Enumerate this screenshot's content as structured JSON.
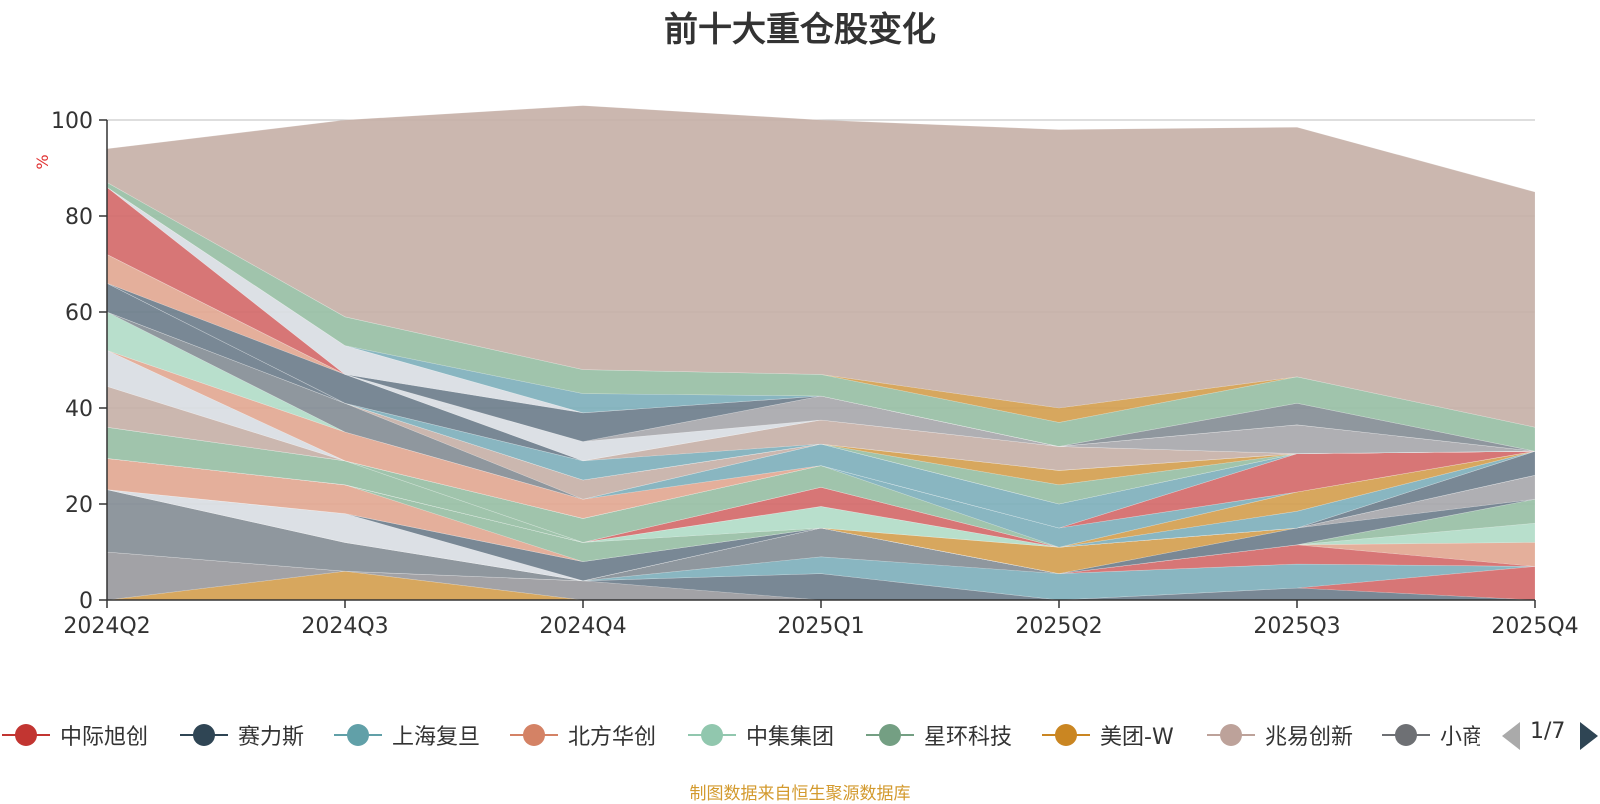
{
  "chart_data": {
    "type": "area",
    "title": "前十大重仓股变化",
    "ylabel": "%",
    "ylim": [
      0,
      100
    ],
    "yticks": [
      0,
      20,
      40,
      60,
      80,
      100
    ],
    "grid": true,
    "legend_placement": "bottom",
    "categories": [
      "2024Q2",
      "2024Q3",
      "2024Q4",
      "2025Q1",
      "2025Q2",
      "2025Q3",
      "2025Q4"
    ],
    "series": [
      {
        "color": "#d4a050",
        "values": [
          0,
          6,
          0,
          0,
          0,
          0,
          0
        ]
      },
      {
        "color": "#9a9a9e",
        "values": [
          10,
          0,
          4,
          0,
          0,
          0,
          0
        ]
      },
      {
        "color": "#6e7e8c",
        "values": [
          0,
          0,
          0,
          5.5,
          0,
          2.5,
          0
        ]
      },
      {
        "color": "#d46a6a",
        "values": [
          0,
          0,
          0,
          0,
          0,
          0,
          7
        ]
      },
      {
        "color": "#7fb0bc",
        "values": [
          0,
          0,
          0,
          3.5,
          5.5,
          5,
          0
        ]
      },
      {
        "color": "#868e96",
        "values": [
          13,
          6,
          0,
          6,
          0,
          0,
          0
        ]
      },
      {
        "color": "#d46a6a",
        "values": [
          0,
          0,
          0,
          0,
          0,
          4,
          0
        ]
      },
      {
        "color": "#e2a892",
        "values": [
          0,
          0,
          0,
          0,
          0,
          0,
          5
        ]
      },
      {
        "color": "#b2dcc8",
        "values": [
          0,
          0,
          0,
          0,
          0,
          0,
          4
        ]
      },
      {
        "color": "#98bfa5",
        "values": [
          0,
          0,
          0,
          0,
          0,
          0,
          5
        ]
      },
      {
        "color": "#d9dde3",
        "values": [
          0,
          6,
          0,
          0,
          0,
          0,
          0
        ]
      },
      {
        "color": "#6e7e8c",
        "values": [
          0,
          0,
          4,
          0,
          0,
          3.5,
          0
        ]
      },
      {
        "color": "#a8a8ad",
        "values": [
          0,
          0,
          0,
          0,
          0,
          0,
          5
        ]
      },
      {
        "color": "#d4a050",
        "values": [
          0,
          0,
          0,
          0,
          5.5,
          0,
          0
        ]
      },
      {
        "color": "#e2a892",
        "values": [
          6.5,
          6,
          0,
          0,
          0,
          0,
          0
        ]
      },
      {
        "color": "#98bfa5",
        "values": [
          0,
          0,
          4,
          0,
          0,
          0,
          0
        ]
      },
      {
        "color": "#b2dcc8",
        "values": [
          0,
          0,
          0,
          4.5,
          0,
          0,
          0
        ]
      },
      {
        "color": "#6e7e8c",
        "values": [
          0,
          0,
          0,
          0,
          0,
          0,
          5
        ]
      },
      {
        "color": "#d9dde3",
        "values": [
          0,
          0,
          0,
          0,
          0,
          0,
          0
        ]
      },
      {
        "color": "#d46a6a",
        "values": [
          0,
          0,
          0,
          4,
          0,
          0,
          0
        ]
      },
      {
        "color": "#7fb0bc",
        "values": [
          0,
          0,
          0,
          0,
          0,
          3.5,
          0
        ]
      },
      {
        "color": "#98bfa5",
        "values": [
          6.5,
          5,
          0,
          0,
          0,
          0,
          0
        ]
      },
      {
        "color": "#d4a050",
        "values": [
          0,
          0,
          0,
          0,
          0,
          4,
          0
        ]
      },
      {
        "color": "#98bfa5",
        "values": [
          0,
          0,
          5,
          4.5,
          0,
          0,
          0
        ]
      },
      {
        "color": "#7fb0bc",
        "values": [
          0,
          0,
          0,
          0,
          4,
          0,
          0
        ]
      },
      {
        "color": "#c7b1a8",
        "values": [
          8.5,
          0,
          0,
          0,
          0,
          0,
          0
        ]
      },
      {
        "color": "#d46a6a",
        "values": [
          0,
          0,
          0,
          0,
          0,
          8,
          0
        ]
      },
      {
        "color": "#d9dde3",
        "values": [
          7.5,
          0,
          0,
          0,
          0,
          0,
          0
        ]
      },
      {
        "color": "#e2a892",
        "values": [
          0,
          6,
          4,
          0,
          0,
          0,
          0
        ]
      },
      {
        "color": "#7fb0bc",
        "values": [
          0,
          0,
          0,
          4.5,
          5,
          0,
          0
        ]
      },
      {
        "color": "#b2dcc8",
        "values": [
          8,
          0,
          0,
          0,
          0,
          0,
          0
        ]
      },
      {
        "color": "#868e96",
        "values": [
          0,
          6,
          0,
          0,
          0,
          0,
          0
        ]
      },
      {
        "color": "#c7b1a8",
        "values": [
          0,
          0,
          4,
          0,
          0,
          0,
          0
        ]
      },
      {
        "color": "#98bfa5",
        "values": [
          0,
          0,
          0,
          0,
          4,
          0,
          0
        ]
      },
      {
        "color": "#d4a050",
        "values": [
          0,
          0,
          0,
          0,
          3,
          0,
          0
        ]
      },
      {
        "color": "#6e7e8c",
        "values": [
          6,
          0,
          0,
          0,
          0,
          0,
          0
        ]
      },
      {
        "color": "#e2a892",
        "values": [
          0,
          0,
          0,
          0,
          0,
          0,
          0
        ]
      },
      {
        "color": "#7fb0bc",
        "values": [
          0,
          0,
          4,
          0,
          0,
          0,
          0
        ]
      },
      {
        "color": "#c7b1a8",
        "values": [
          0,
          0,
          0,
          5,
          5,
          0,
          0
        ]
      },
      {
        "color": "#6e7e8c",
        "values": [
          0,
          6,
          0,
          0,
          0,
          0,
          0
        ]
      },
      {
        "color": "#e2a892",
        "values": [
          6,
          0,
          0,
          0,
          0,
          0,
          0
        ]
      },
      {
        "color": "#d9dde3",
        "values": [
          0,
          0,
          4,
          0,
          0,
          0,
          0
        ]
      },
      {
        "color": "#a8a8ad",
        "values": [
          0,
          0,
          0,
          5,
          0,
          6,
          0
        ]
      },
      {
        "color": "#d46a6a",
        "values": [
          14,
          0,
          0,
          0,
          0,
          0,
          0
        ]
      },
      {
        "color": "#6e7e8c",
        "values": [
          0,
          0,
          6,
          0,
          0,
          0,
          0
        ]
      },
      {
        "color": "#d9dde3",
        "values": [
          0,
          6,
          0,
          0,
          0,
          0,
          0
        ]
      },
      {
        "color": "#868e96",
        "values": [
          0,
          0,
          0,
          0,
          0,
          4.5,
          0
        ]
      },
      {
        "color": "#7fb0bc",
        "values": [
          0,
          0,
          4,
          0,
          0,
          0,
          0
        ]
      },
      {
        "color": "#98bfa5",
        "values": [
          1,
          6,
          5,
          4.5,
          5,
          5.5,
          5
        ]
      },
      {
        "color": "#d4a050",
        "values": [
          0,
          0,
          0,
          0,
          3,
          0,
          0
        ]
      },
      {
        "color": "#c7b1a8",
        "values": [
          7,
          41,
          55,
          53,
          58,
          52,
          49
        ]
      }
    ]
  },
  "legend": {
    "items": [
      {
        "label": "中际旭创",
        "color": "#c23531"
      },
      {
        "label": "赛力斯",
        "color": "#2f4554"
      },
      {
        "label": "上海复旦",
        "color": "#61a0a8"
      },
      {
        "label": "北方华创",
        "color": "#d48265"
      },
      {
        "label": "中集集团",
        "color": "#91c7ae"
      },
      {
        "label": "星环科技",
        "color": "#749f83"
      },
      {
        "label": "美团-W",
        "color": "#ca8622"
      },
      {
        "label": "兆易创新",
        "color": "#bda29a"
      },
      {
        "label": "小商品城",
        "color": "#6e7074"
      }
    ],
    "page": "1/7"
  },
  "source": "制图数据来自恒生聚源数据库"
}
